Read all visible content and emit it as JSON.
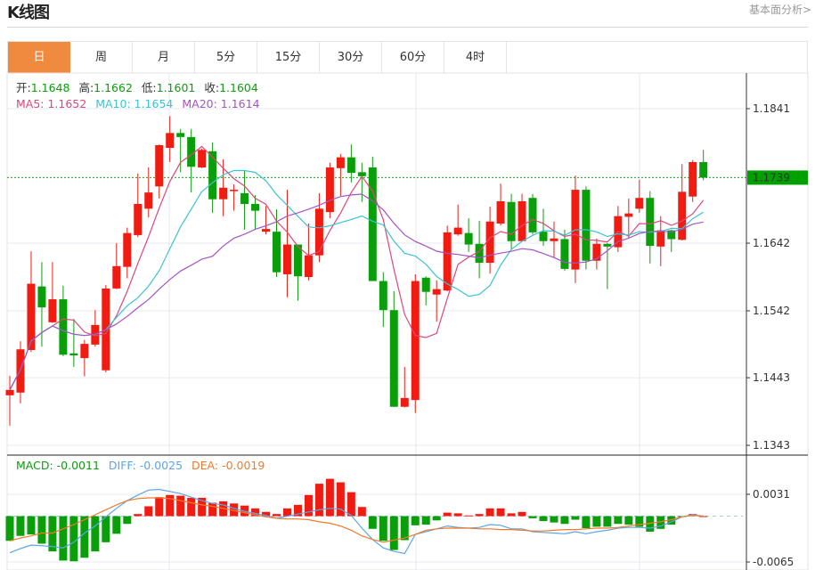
{
  "header": {
    "title": "K线图",
    "link": "基本面分析>"
  },
  "tabs": [
    {
      "label": "日",
      "active": true
    },
    {
      "label": "周"
    },
    {
      "label": "月"
    },
    {
      "label": "5分"
    },
    {
      "label": "15分"
    },
    {
      "label": "30分"
    },
    {
      "label": "60分"
    },
    {
      "label": "4时"
    }
  ],
  "ohlc_info": {
    "open_label": "开:",
    "open": "1.1648",
    "high_label": "高:",
    "high": "1.1662",
    "low_label": "低:",
    "low": "1.1601",
    "close_label": "收:",
    "close": "1.1604"
  },
  "ma_info": {
    "ma5": "MA5: 1.1652",
    "ma10": "MA10: 1.1654",
    "ma20": "MA20: 1.1614"
  },
  "macd_info": {
    "macd": "MACD: -0.0011",
    "diff": "DIFF: -0.0025",
    "dea": "DEA: -0.0019"
  },
  "colors": {
    "up": "#f01c12",
    "down": "#0a9e0a",
    "ma5": "#e0457b",
    "ma10": "#3cc3d0",
    "ma20": "#a354c4",
    "diff": "#5aa6e6",
    "dea": "#f07a2a",
    "tab_active": "#f08a3e",
    "last_price_bg": "#00a000"
  },
  "chart_data": {
    "type": "candlestick",
    "price_axis": {
      "ticks": [
        "1.1841",
        "1.1642",
        "1.1542",
        "1.1443",
        "1.1343"
      ],
      "range": [
        1.1343,
        1.1841
      ]
    },
    "last_price": "1.1739",
    "candles": [
      [
        1.1417,
        1.1446,
        1.1372,
        1.1425
      ],
      [
        1.1421,
        1.1497,
        1.1405,
        1.1485
      ],
      [
        1.1484,
        1.163,
        1.1481,
        1.1582
      ],
      [
        1.1578,
        1.1614,
        1.1489,
        1.1547
      ],
      [
        1.1525,
        1.1614,
        1.1524,
        1.1559
      ],
      [
        1.1559,
        1.1579,
        1.1475,
        1.1477
      ],
      [
        1.1479,
        1.153,
        1.1459,
        1.1476
      ],
      [
        1.1472,
        1.1499,
        1.1445,
        1.1493
      ],
      [
        1.1492,
        1.1543,
        1.1489,
        1.1521
      ],
      [
        1.1454,
        1.158,
        1.1451,
        1.1575
      ],
      [
        1.1575,
        1.1642,
        1.1574,
        1.1608
      ],
      [
        1.1607,
        1.1665,
        1.159,
        1.1657
      ],
      [
        1.1654,
        1.1745,
        1.1651,
        1.17
      ],
      [
        1.1693,
        1.1754,
        1.168,
        1.1717
      ],
      [
        1.1726,
        1.1788,
        1.1708,
        1.1787
      ],
      [
        1.1783,
        1.183,
        1.1762,
        1.1805
      ],
      [
        1.1805,
        1.1811,
        1.1747,
        1.1799
      ],
      [
        1.1799,
        1.1811,
        1.1717,
        1.1755
      ],
      [
        1.1754,
        1.1782,
        1.1753,
        1.178
      ],
      [
        1.1778,
        1.1791,
        1.1687,
        1.1707
      ],
      [
        1.1707,
        1.1766,
        1.1682,
        1.1724
      ],
      [
        1.1719,
        1.1729,
        1.169,
        1.1721
      ],
      [
        1.1716,
        1.1749,
        1.1662,
        1.17
      ],
      [
        1.17,
        1.1713,
        1.1663,
        1.169
      ],
      [
        1.1659,
        1.1697,
        1.1655,
        1.1663
      ],
      [
        1.1659,
        1.1692,
        1.1592,
        1.1599
      ],
      [
        1.1596,
        1.1721,
        1.1562,
        1.164
      ],
      [
        1.164,
        1.164,
        1.1557,
        1.1593
      ],
      [
        1.1592,
        1.1671,
        1.1587,
        1.1624
      ],
      [
        1.1624,
        1.1716,
        1.1614,
        1.1693
      ],
      [
        1.1688,
        1.1761,
        1.1679,
        1.1754
      ],
      [
        1.1753,
        1.1774,
        1.1712,
        1.1769
      ],
      [
        1.1769,
        1.1788,
        1.1732,
        1.1746
      ],
      [
        1.1747,
        1.1761,
        1.1703,
        1.1741
      ],
      [
        1.1754,
        1.177,
        1.1586,
        1.1586
      ],
      [
        1.1586,
        1.1599,
        1.1518,
        1.1543
      ],
      [
        1.1543,
        1.1571,
        1.14,
        1.14
      ],
      [
        1.14,
        1.1459,
        1.1399,
        1.1413
      ],
      [
        1.141,
        1.1596,
        1.1391,
        1.1586
      ],
      [
        1.1591,
        1.1593,
        1.155,
        1.157
      ],
      [
        1.1566,
        1.1587,
        1.1526,
        1.1574
      ],
      [
        1.1572,
        1.1668,
        1.1571,
        1.1658
      ],
      [
        1.1655,
        1.1699,
        1.1653,
        1.1665
      ],
      [
        1.1657,
        1.1679,
        1.1629,
        1.164
      ],
      [
        1.1641,
        1.1675,
        1.159,
        1.1613
      ],
      [
        1.1613,
        1.1696,
        1.1597,
        1.1674
      ],
      [
        1.1671,
        1.173,
        1.1668,
        1.1704
      ],
      [
        1.1703,
        1.1715,
        1.1633,
        1.1645
      ],
      [
        1.1645,
        1.1715,
        1.1644,
        1.1704
      ],
      [
        1.1709,
        1.1715,
        1.1655,
        1.1658
      ],
      [
        1.1659,
        1.1693,
        1.1638,
        1.1645
      ],
      [
        1.1645,
        1.1674,
        1.1621,
        1.1649
      ],
      [
        1.1648,
        1.1662,
        1.1601,
        1.1604
      ],
      [
        1.1603,
        1.1742,
        1.1583,
        1.1721
      ],
      [
        1.1721,
        1.1726,
        1.1603,
        1.1616
      ],
      [
        1.1616,
        1.1649,
        1.1603,
        1.1641
      ],
      [
        1.1641,
        1.1642,
        1.1574,
        1.1637
      ],
      [
        1.1636,
        1.1697,
        1.1629,
        1.1682
      ],
      [
        1.1681,
        1.1708,
        1.165,
        1.1686
      ],
      [
        1.1693,
        1.1736,
        1.1687,
        1.1709
      ],
      [
        1.1709,
        1.1719,
        1.1612,
        1.1638
      ],
      [
        1.1637,
        1.1682,
        1.1608,
        1.1661
      ],
      [
        1.1661,
        1.1662,
        1.1629,
        1.1648
      ],
      [
        1.1647,
        1.1759,
        1.1646,
        1.1718
      ],
      [
        1.1711,
        1.1765,
        1.1703,
        1.1762
      ],
      [
        1.1762,
        1.178,
        1.1735,
        1.1739
      ]
    ],
    "candle_format": [
      "open",
      "high",
      "low",
      "close"
    ],
    "moving_averages": [
      {
        "name": "MA5",
        "period": 5
      },
      {
        "name": "MA10",
        "period": 10
      },
      {
        "name": "MA20",
        "period": 20
      }
    ],
    "macd": {
      "axis_ticks": [
        "0.0031",
        "-0.0065"
      ],
      "range": [
        -0.0065,
        0.0031
      ],
      "histogram": [
        -0.0035,
        -0.0028,
        -0.0026,
        -0.0039,
        -0.005,
        -0.0063,
        -0.0064,
        -0.0059,
        -0.005,
        -0.0037,
        -0.0025,
        -0.0011,
        0.0003,
        0.0014,
        0.0027,
        0.003,
        0.0029,
        0.0026,
        0.0026,
        0.0019,
        0.0021,
        0.0018,
        0.0015,
        0.0011,
        0.0006,
        0.0003,
        0.0011,
        0.0016,
        0.003,
        0.0046,
        0.0053,
        0.0048,
        0.0034,
        0.0013,
        -0.0018,
        -0.0035,
        -0.0048,
        -0.0034,
        -0.0013,
        -0.0012,
        -0.0006,
        0.0005,
        0.0004,
        0.0001,
        0.0003,
        0.0011,
        0.0011,
        0.0004,
        0.0006,
        -0.0003,
        -0.0007,
        -0.0009,
        -0.0011,
        -0.0005,
        -0.0017,
        -0.0015,
        -0.0015,
        -0.0011,
        -0.0012,
        -0.0015,
        -0.0022,
        -0.0018,
        -0.0012,
        -0.0001,
        0.0003,
        0.0
      ],
      "diff": [
        -0.0052,
        -0.0046,
        -0.0041,
        -0.0042,
        -0.0043,
        -0.0045,
        -0.0037,
        -0.0024,
        -0.0014,
        -0.0001,
        0.0011,
        0.0022,
        0.003,
        0.0037,
        0.0038,
        0.0035,
        0.0032,
        0.0027,
        0.0022,
        0.0018,
        0.0016,
        0.0011,
        0.0007,
        0.0004,
        0.0001,
        -0.0003,
        0.0,
        0.0003,
        0.0006,
        0.0009,
        0.0011,
        0.001,
        0.0001,
        -0.0017,
        -0.0033,
        -0.0045,
        -0.005,
        -0.0053,
        -0.0026,
        -0.0022,
        -0.0018,
        -0.0014,
        -0.0016,
        -0.0017,
        -0.0016,
        -0.0012,
        -0.0013,
        -0.0018,
        -0.0018,
        -0.0022,
        -0.0023,
        -0.0024,
        -0.0025,
        -0.0022,
        -0.0025,
        -0.0022,
        -0.002,
        -0.0017,
        -0.0016,
        -0.0016,
        -0.0017,
        -0.0014,
        -0.0008,
        -0.0001,
        0.0002,
        0.0
      ],
      "dea": [
        -0.0035,
        -0.0031,
        -0.0028,
        -0.0024,
        -0.0024,
        -0.0018,
        -0.0012,
        -0.0005,
        0.0002,
        0.0009,
        0.0016,
        0.0022,
        0.0025,
        0.0026,
        0.0026,
        0.0025,
        0.0022,
        0.0019,
        0.0016,
        0.0014,
        0.0011,
        0.0008,
        0.0005,
        0.0002,
        -0.0001,
        -0.0003,
        -0.0004,
        -0.0004,
        -0.0005,
        -0.0008,
        -0.001,
        -0.0014,
        -0.002,
        -0.0028,
        -0.0033,
        -0.0037,
        -0.0034,
        -0.0031,
        -0.0026,
        -0.002,
        -0.0018,
        -0.0017,
        -0.0017,
        -0.0017,
        -0.0018,
        -0.0018,
        -0.0019,
        -0.0019,
        -0.002,
        -0.0021,
        -0.0021,
        -0.002,
        -0.0019,
        -0.0019,
        -0.0018,
        -0.0017,
        -0.0017,
        -0.0016,
        -0.0014,
        -0.0012,
        -0.001,
        -0.0008,
        -0.0005,
        -0.0001,
        0.0001,
        0.0
      ]
    }
  }
}
